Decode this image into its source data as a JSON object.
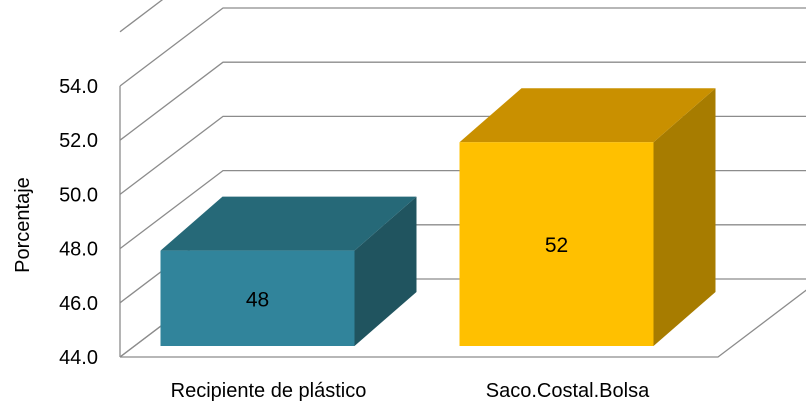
{
  "chart_data": {
    "type": "bar",
    "three_d": true,
    "title": "",
    "xlabel": "",
    "ylabel": "Porcentaje",
    "ylim": [
      44,
      54
    ],
    "yticks": [
      "44.0",
      "46.0",
      "48.0",
      "50.0",
      "52.0",
      "54.0"
    ],
    "gridlines": true,
    "categories": [
      "Recipiente de plástico",
      "Saco.Costal.Bolsa"
    ],
    "values": [
      48,
      52
    ],
    "data_labels": [
      "48",
      "52"
    ],
    "colors": [
      {
        "front": "#31849b",
        "top": "#266978",
        "side": "#20545f"
      },
      {
        "front": "#ffc000",
        "top": "#c99000",
        "side": "#a77c00"
      }
    ]
  }
}
